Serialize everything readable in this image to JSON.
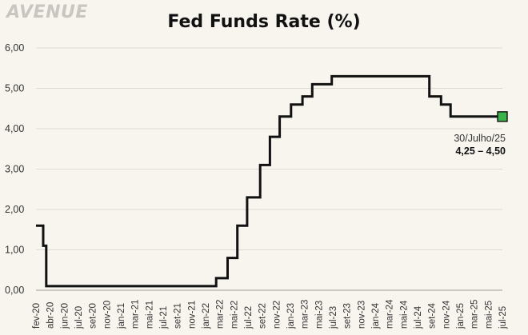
{
  "brand": {
    "logo_text": "AVENUE"
  },
  "chart_data": {
    "type": "line",
    "title": "Fed Funds Rate (%)",
    "xlabel": "",
    "ylabel": "",
    "ylim": [
      0,
      6
    ],
    "y_ticks": [
      "0,00",
      "1,00",
      "2,00",
      "3,00",
      "4,00",
      "5,00",
      "6,00"
    ],
    "x_range": [
      "2020-02-01",
      "2025-07-30"
    ],
    "x_ticks": [
      "fev-20",
      "abr-20",
      "jun-20",
      "jul-20",
      "set-20",
      "nov-20",
      "jan-21",
      "mar-21",
      "mai-21",
      "jul-21",
      "set-21",
      "nov-21",
      "jan-22",
      "mar-22",
      "mai-22",
      "jul-22",
      "set-22",
      "nov-22",
      "jan-23",
      "mar-23",
      "mai-23",
      "jul-23",
      "set-23",
      "nov-23",
      "jan-24",
      "mar-24",
      "mai-24",
      "jul-24",
      "set-24",
      "nov-24",
      "jan-25",
      "mar-25",
      "mai-25",
      "jul-25"
    ],
    "grid": "horizontal",
    "line_color": "#111111",
    "marker_color": "#3cb24a",
    "series": [
      {
        "step": true,
        "points": [
          {
            "x": "2020-02-01",
            "y": 1.6
          },
          {
            "x": "2020-03-03",
            "y": 1.1
          },
          {
            "x": "2020-03-16",
            "y": 0.1
          },
          {
            "x": "2022-03-17",
            "y": 0.3
          },
          {
            "x": "2022-05-05",
            "y": 0.8
          },
          {
            "x": "2022-06-16",
            "y": 1.6
          },
          {
            "x": "2022-07-28",
            "y": 2.3
          },
          {
            "x": "2022-09-22",
            "y": 3.1
          },
          {
            "x": "2022-11-03",
            "y": 3.8
          },
          {
            "x": "2022-12-15",
            "y": 4.3
          },
          {
            "x": "2023-02-02",
            "y": 4.6
          },
          {
            "x": "2023-03-23",
            "y": 4.8
          },
          {
            "x": "2023-05-04",
            "y": 5.1
          },
          {
            "x": "2023-07-27",
            "y": 5.3
          },
          {
            "x": "2024-09-19",
            "y": 4.8
          },
          {
            "x": "2024-11-08",
            "y": 4.6
          },
          {
            "x": "2024-12-19",
            "y": 4.3
          },
          {
            "x": "2025-07-30",
            "y": 4.3
          }
        ]
      }
    ],
    "annotation": {
      "x": "2025-07-30",
      "y": 4.3,
      "line1": "30/Julho/25",
      "line2": "4,25 – 4,50"
    }
  }
}
